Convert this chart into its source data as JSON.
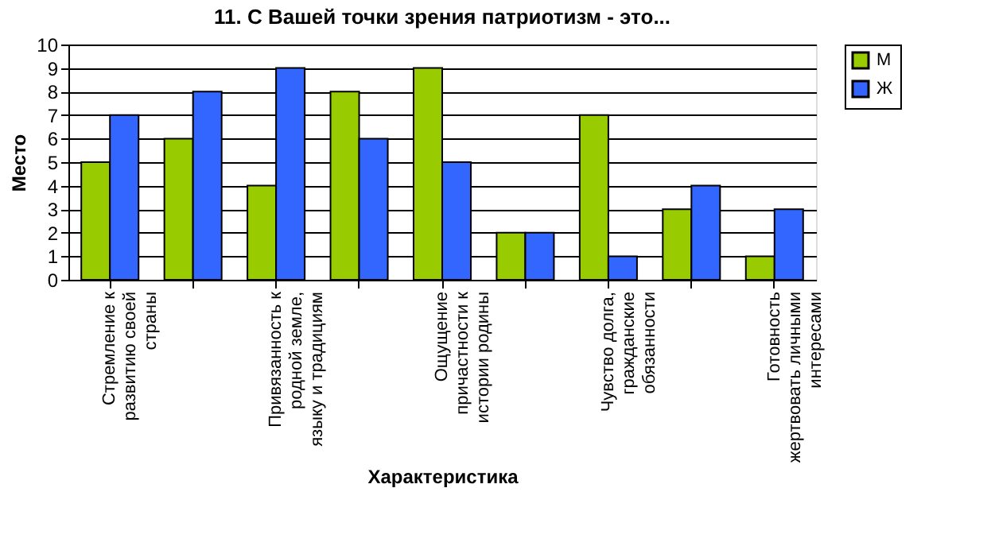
{
  "chart_data": {
    "type": "bar",
    "title": "11. С Вашей точки зрения патриотизм - это...",
    "xlabel": "Характеристика",
    "ylabel": "Место",
    "categories": [
      "Стремление к развитию своей страны",
      null,
      "Привязанность к родной земле, языку и традициям",
      null,
      "Ощущение причастности к истории родины",
      null,
      "Чувство долга, гражданские обязанности",
      null,
      "Готовность жертвовать личными интересами"
    ],
    "series": [
      {
        "name": "М",
        "color": "#99cc00",
        "values": [
          5,
          6,
          4,
          8,
          9,
          2,
          7,
          3,
          1
        ]
      },
      {
        "name": "Ж",
        "color": "#3366ff",
        "values": [
          7,
          8,
          9,
          6,
          5,
          2,
          1,
          4,
          3
        ]
      }
    ],
    "ylim": [
      0,
      10
    ],
    "yticks": [
      0,
      1,
      2,
      3,
      4,
      5,
      6,
      7,
      8,
      9,
      10
    ],
    "grid": "y",
    "legend": "right"
  }
}
